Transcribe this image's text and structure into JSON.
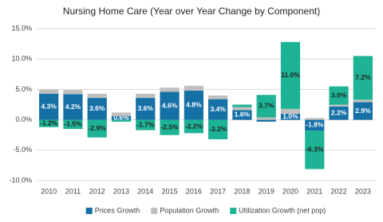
{
  "chart_data": {
    "type": "bar",
    "stacked": true,
    "title": "Nursing Home Care (Year over Year Change by Component)",
    "categories": [
      "2010",
      "2011",
      "2012",
      "2013",
      "2014",
      "2015",
      "2016",
      "2017",
      "2018",
      "2019",
      "2020",
      "2021",
      "2022",
      "2023"
    ],
    "series": [
      {
        "name": "Prices Growth",
        "color": "#1570a6",
        "values": [
          4.3,
          4.2,
          3.6,
          0.6,
          3.6,
          4.6,
          4.8,
          3.4,
          1.6,
          -0.3,
          1.0,
          -1.8,
          2.2,
          2.9
        ],
        "value_labels": [
          "4.3%",
          "4.2%",
          "3.6%",
          "0.6%",
          "3.6%",
          "4.6%",
          "4.8%",
          "3.4%",
          "1.6%",
          null,
          "1.0%",
          "-1.8%",
          "2.2%",
          "2.9%"
        ]
      },
      {
        "name": "Population Growth",
        "color": "#bfbfbf",
        "values": [
          0.7,
          0.7,
          0.7,
          0.6,
          0.7,
          0.7,
          0.8,
          0.6,
          0.5,
          0.4,
          0.8,
          0.3,
          0.3,
          0.4
        ]
      },
      {
        "name": "Utilization Growth (net pop)",
        "color": "#1db394",
        "values": [
          -1.2,
          -1.5,
          -2.9,
          -0.3,
          -1.7,
          -2.5,
          -2.2,
          -3.2,
          0.4,
          3.7,
          11.0,
          -6.3,
          3.0,
          7.2
        ],
        "value_labels": [
          "-1.2%",
          "-1.5%",
          "-2.9%",
          null,
          "-1.7%",
          "-2.5%",
          "-2.2%",
          "-3.2%",
          null,
          "3.7%",
          "11.0%",
          "-6.3%",
          "3.0%",
          "7.2%"
        ]
      }
    ],
    "ylim": [
      -10,
      15
    ],
    "yticks": [
      {
        "value": -10,
        "label": "-10.0%"
      },
      {
        "value": -5,
        "label": "-5.0%"
      },
      {
        "value": 0,
        "label": "0.0%"
      },
      {
        "value": 5,
        "label": "5.0%"
      },
      {
        "value": 10,
        "label": "10.0%"
      },
      {
        "value": 15,
        "label": "15.0%"
      }
    ],
    "grid": true,
    "legend": "bottom"
  }
}
